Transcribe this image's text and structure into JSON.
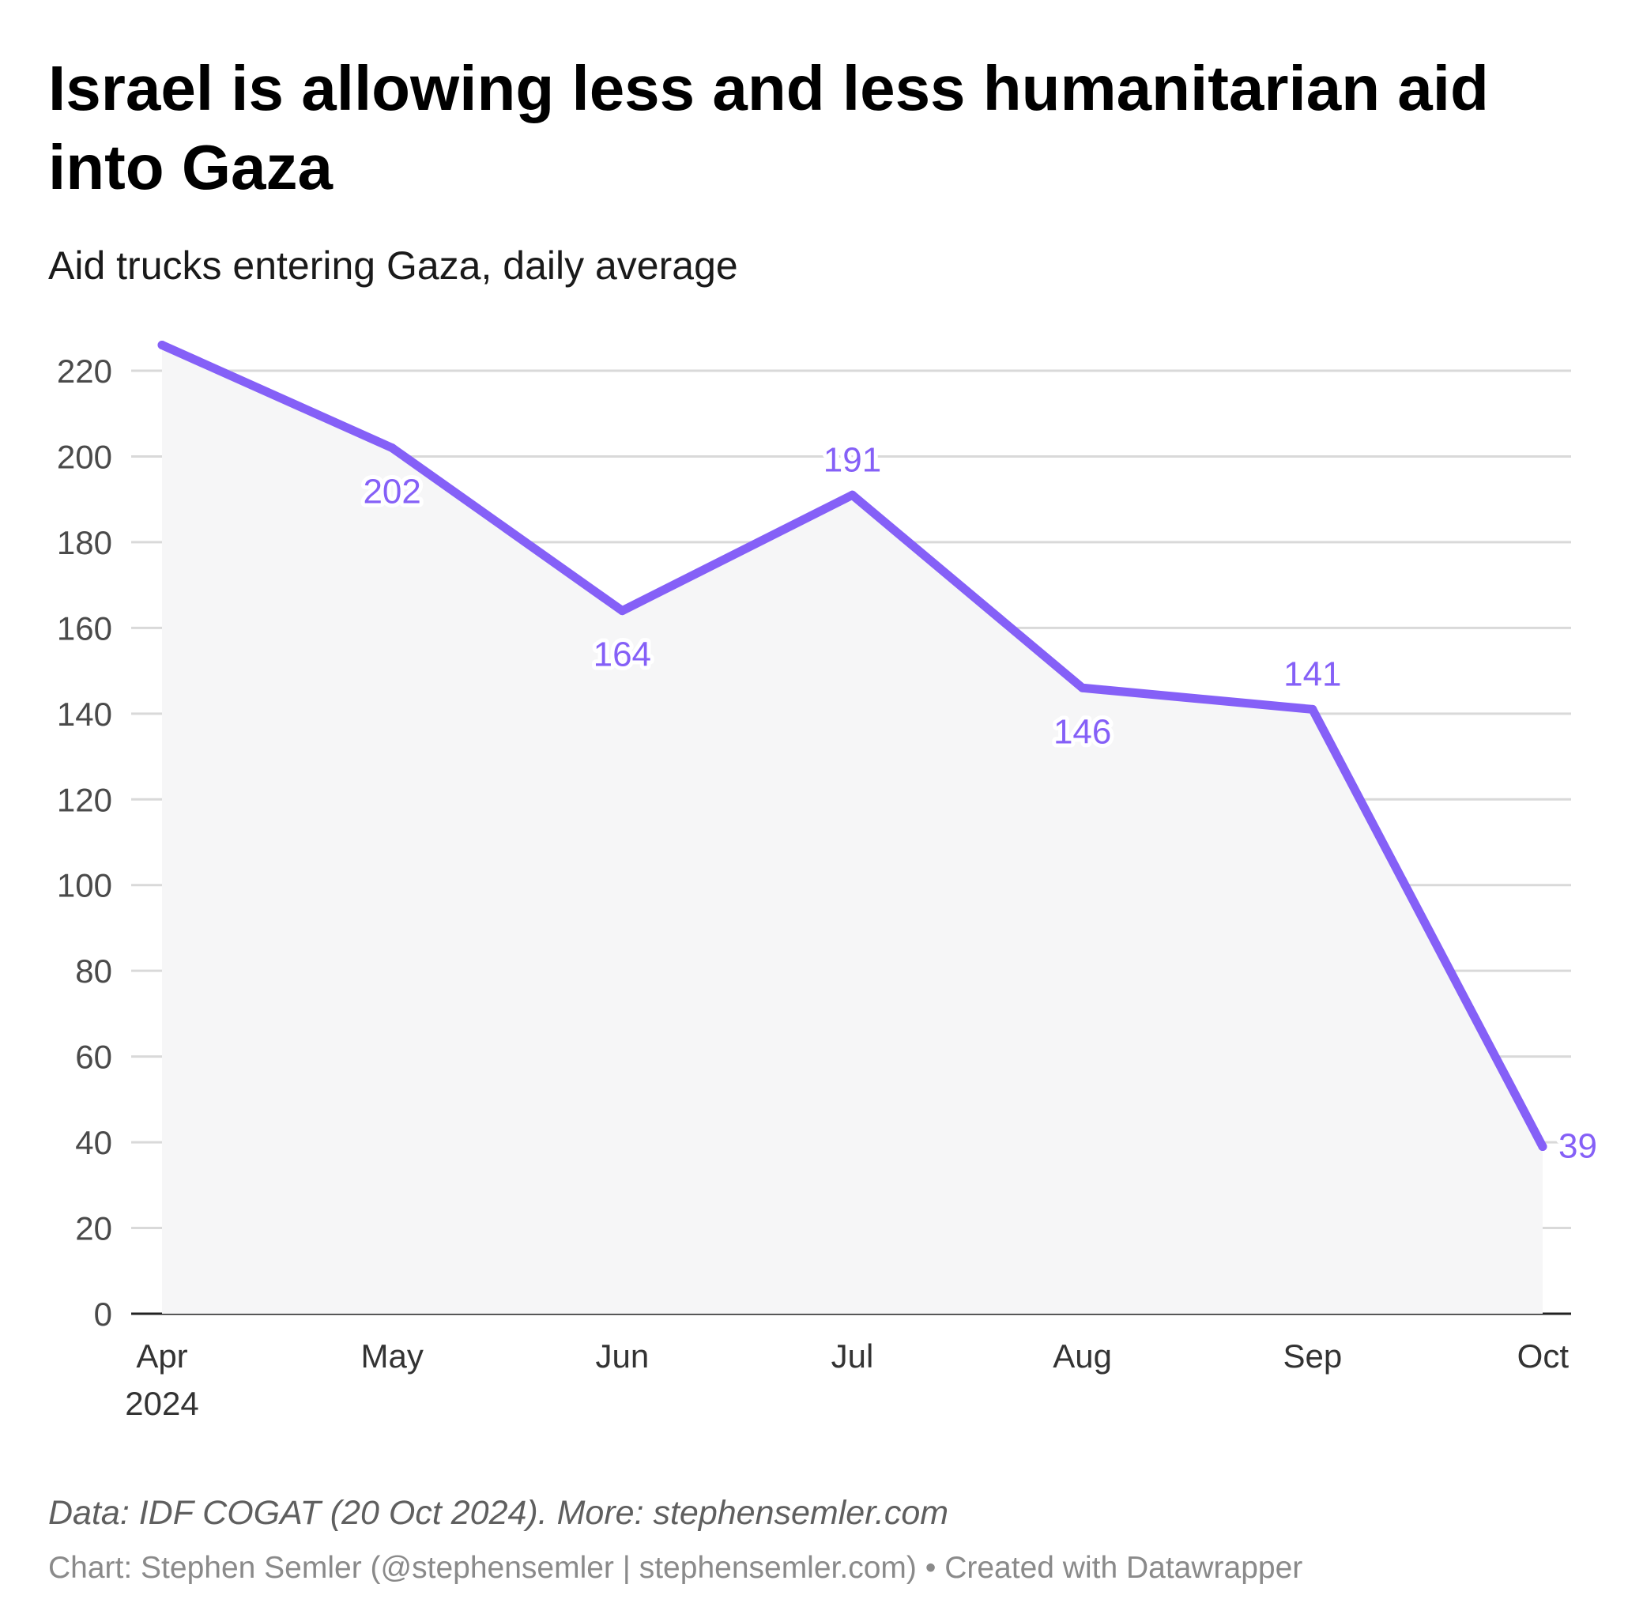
{
  "header": {
    "title": "Israel is allowing less and less humanitarian aid into Gaza",
    "subtitle": "Aid trucks entering Gaza, daily average"
  },
  "footer": {
    "notes": "Data: IDF COGAT (20 Oct 2024). More: stephensemler.com",
    "byline": "Chart: Stephen Semler (@stephensemler | stephensemler.com) • Created with Datawrapper"
  },
  "chart_data": {
    "type": "area",
    "title": "Israel is allowing less and less humanitarian aid into Gaza",
    "subtitle": "Aid trucks entering Gaza, daily average",
    "xlabel": "",
    "ylabel": "",
    "categories": [
      "Apr",
      "May",
      "Jun",
      "Jul",
      "Aug",
      "Sep",
      "Oct"
    ],
    "year_label": "2024",
    "series": [
      {
        "values": [
          226,
          202,
          164,
          191,
          146,
          141,
          39
        ],
        "labels": [
          "",
          "202",
          "164",
          "191",
          "146",
          "141",
          "39"
        ],
        "color": "#8560f7"
      }
    ],
    "ylim": [
      0,
      220
    ],
    "yticks": [
      0,
      20,
      40,
      60,
      80,
      100,
      120,
      140,
      160,
      180,
      200,
      220
    ],
    "grid": true,
    "area_fill": "#f6f6f7",
    "line_color": "#8560f7",
    "legend": "none"
  }
}
